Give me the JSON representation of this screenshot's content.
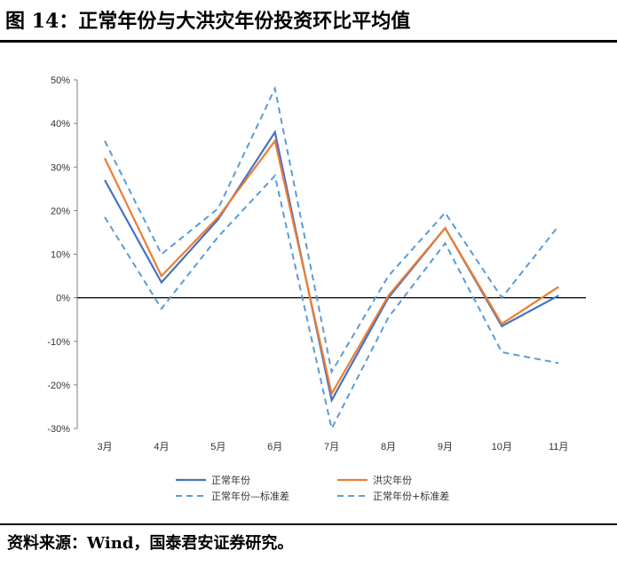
{
  "title": "图 14：正常年份与大洪灾年份投资环比平均值",
  "source": "资料来源：Wind，国泰君安证券研究。",
  "colors": {
    "blue": "#4472C4",
    "orange": "#ED7D31",
    "dashed": "#5B9BD5"
  },
  "chart_data": {
    "type": "line",
    "categories": [
      "3月",
      "4月",
      "5月",
      "6月",
      "7月",
      "8月",
      "9月",
      "10月",
      "11月"
    ],
    "ylim": [
      -30,
      50
    ],
    "yticks": [
      -30,
      -20,
      -10,
      0,
      10,
      20,
      30,
      40,
      50
    ],
    "ytick_labels": [
      "-30%",
      "-20%",
      "-10%",
      "0%",
      "10%",
      "20%",
      "30%",
      "40%",
      "50%"
    ],
    "grid": false,
    "legend_position": "bottom",
    "series": [
      {
        "name": "正常年份",
        "values": [
          27,
          3.5,
          18,
          38,
          -23.5,
          0,
          16,
          -6.5,
          0.5
        ],
        "color": "#4472C4",
        "dashed": false
      },
      {
        "name": "洪灾年份",
        "values": [
          32,
          5,
          18.5,
          36,
          -22,
          0.5,
          16,
          -6,
          2.5
        ],
        "color": "#ED7D31",
        "dashed": false
      },
      {
        "name": "正常年份—标准差",
        "values": [
          18.5,
          -2.5,
          14,
          28,
          -30,
          -4.5,
          12.5,
          -12.5,
          -15
        ],
        "color": "#5B9BD5",
        "dashed": true
      },
      {
        "name": "正常年份+标准差",
        "values": [
          36,
          10,
          20.5,
          48,
          -17,
          5,
          19.5,
          0,
          16.5
        ],
        "color": "#5B9BD5",
        "dashed": true
      }
    ]
  }
}
